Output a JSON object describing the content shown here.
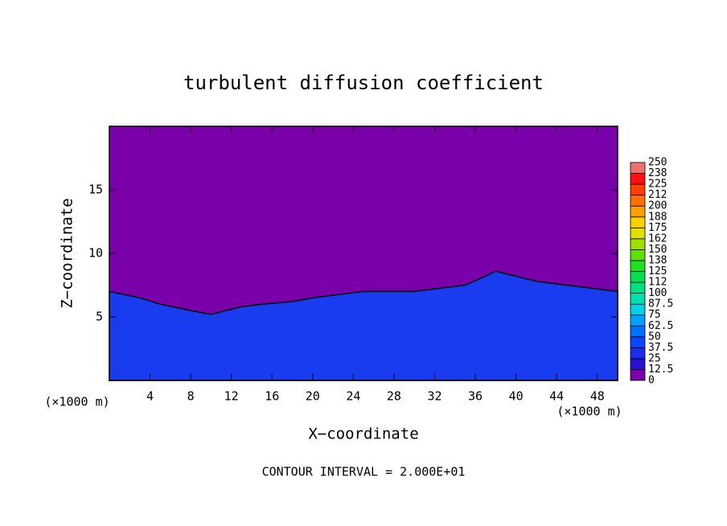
{
  "chart_data": {
    "type": "contour",
    "title": "turbulent diffusion coefficient",
    "xlabel": "X−coordinate",
    "ylabel": "Z−coordinate",
    "x_unit_labels": [
      "(×1000 m)",
      "(×1000 m)"
    ],
    "footnote": "CONTOUR INTERVAL = 2.000E+01",
    "xlim": [
      0,
      50
    ],
    "xticks": [
      4,
      8,
      12,
      16,
      20,
      24,
      28,
      32,
      36,
      40,
      44,
      48
    ],
    "ylim": [
      0,
      20
    ],
    "yticks": [
      5,
      10,
      15
    ],
    "background_color": "#7a00aa",
    "layer_color": "#1a3cf0",
    "x": [
      0,
      3,
      5,
      8,
      10,
      13,
      15,
      18,
      20,
      23,
      25,
      28,
      30,
      33,
      35,
      37,
      38,
      40,
      42,
      45,
      48,
      50
    ],
    "values": [
      7,
      6.5,
      6,
      5.5,
      5.2,
      5.8,
      6,
      6.2,
      6.5,
      6.8,
      7,
      7,
      7,
      7.3,
      7.5,
      8.2,
      8.6,
      8.2,
      7.8,
      7.5,
      7.2,
      7
    ],
    "colorbar": {
      "levels": [
        0,
        12.5,
        25,
        37.5,
        50,
        62.5,
        75,
        87.5,
        100,
        112,
        125,
        138,
        150,
        162,
        175,
        188,
        200,
        212,
        225,
        238,
        250
      ],
      "colors": [
        "#7a00aa",
        "#2a10d0",
        "#1a2ef0",
        "#0a48ff",
        "#0070ff",
        "#00a0ff",
        "#00d0e8",
        "#00e0b0",
        "#00e080",
        "#00e050",
        "#20e020",
        "#60e000",
        "#a0e000",
        "#e0e000",
        "#ffd000",
        "#ffa000",
        "#ff7000",
        "#ff4000",
        "#ff1010",
        "#f07070"
      ]
    }
  }
}
